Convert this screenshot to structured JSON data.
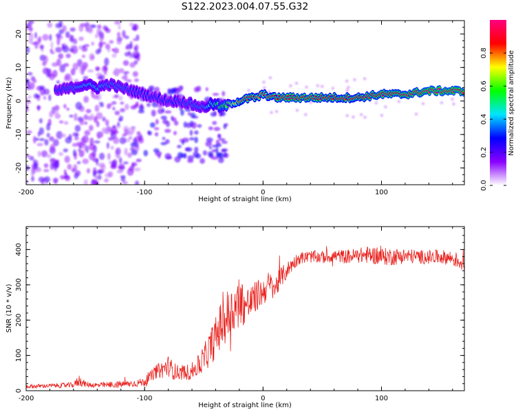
{
  "title": "S122.2023.004.07.55.G32",
  "chart_data": [
    {
      "type": "heatmap",
      "xlabel": "Height of straight line (km)",
      "ylabel": "Frequency (Hz)",
      "xlim": [
        -200,
        170
      ],
      "ylim": [
        -25,
        24
      ],
      "x_ticks": [
        -200,
        -100,
        0,
        100
      ],
      "x_tick_labels": [
        "-200",
        "-100",
        "0",
        "100"
      ],
      "y_ticks": [
        -20,
        -10,
        0,
        10,
        20
      ],
      "y_tick_labels": [
        "-20",
        "-10",
        "0",
        "10",
        "20"
      ],
      "colorbar": {
        "label": "Normalized spectral amplitude",
        "range": [
          0,
          1
        ],
        "ticks": [
          0.0,
          0.2,
          0.4,
          0.6,
          0.8
        ],
        "tick_labels": [
          "0.0",
          "0.2",
          "0.4",
          "0.6",
          "0.8"
        ],
        "colors": [
          "#ffffff",
          "#8a00ff",
          "#0000ff",
          "#00e5ff",
          "#00ff00",
          "#ffff00",
          "#ff0000",
          "#ff0080"
        ]
      },
      "ridge": {
        "x": [
          -175,
          -160,
          -150,
          -140,
          -130,
          -120,
          -110,
          -100,
          -90,
          -80,
          -70,
          -60,
          -50,
          -45,
          -40,
          -35,
          -30,
          -20,
          -10,
          -5,
          0,
          10,
          20,
          40,
          60,
          80,
          100,
          120,
          140,
          170
        ],
        "freq": [
          3,
          4,
          5,
          4,
          5,
          4,
          3,
          2,
          1,
          0,
          0,
          -1,
          -2,
          -1,
          -1,
          -2,
          -1,
          0,
          1,
          1,
          2,
          1,
          1,
          1,
          1,
          1,
          2,
          2,
          3,
          3
        ],
        "amplitude": [
          0.3,
          0.35,
          0.4,
          0.4,
          0.35,
          0.35,
          0.3,
          0.3,
          0.3,
          0.3,
          0.3,
          0.35,
          0.35,
          0.45,
          0.5,
          0.55,
          0.6,
          0.8,
          0.85,
          0.8,
          0.8,
          0.85,
          0.9,
          0.9,
          0.85,
          0.85,
          0.9,
          0.9,
          0.95,
          0.95
        ]
      },
      "noise_region": {
        "x_from": -200,
        "x_to": -105,
        "amplitude": 0.1
      }
    },
    {
      "type": "line",
      "xlabel": "Height of straight line (km)",
      "ylabel": "SNR (10 * v/v)",
      "xlim": [
        -200,
        170
      ],
      "ylim": [
        0,
        465
      ],
      "x_ticks": [
        -200,
        -100,
        0,
        100
      ],
      "x_tick_labels": [
        "-200",
        "-100",
        "0",
        "100"
      ],
      "y_ticks": [
        0,
        100,
        200,
        300,
        400
      ],
      "y_tick_labels": [
        "0",
        "100",
        "200",
        "300",
        "400"
      ],
      "series": [
        {
          "name": "SNR",
          "color": "#e8211d",
          "x": [
            -200,
            -180,
            -160,
            -155,
            -150,
            -140,
            -120,
            -110,
            -100,
            -95,
            -90,
            -85,
            -80,
            -75,
            -70,
            -65,
            -60,
            -55,
            -50,
            -45,
            -40,
            -35,
            -30,
            -25,
            -20,
            -15,
            -10,
            -5,
            0,
            5,
            10,
            15,
            20,
            25,
            30,
            40,
            50,
            60,
            70,
            80,
            90,
            100,
            110,
            120,
            130,
            140,
            150,
            160,
            170
          ],
          "y": [
            12,
            14,
            16,
            30,
            18,
            15,
            18,
            20,
            25,
            40,
            55,
            60,
            70,
            55,
            50,
            52,
            55,
            70,
            90,
            120,
            150,
            190,
            210,
            230,
            260,
            240,
            250,
            270,
            280,
            300,
            290,
            320,
            340,
            360,
            375,
            380,
            378,
            382,
            380,
            383,
            385,
            380,
            380,
            382,
            380,
            378,
            380,
            375,
            360
          ],
          "noise_amplitude": [
            6,
            6,
            8,
            18,
            8,
            8,
            10,
            10,
            12,
            16,
            20,
            25,
            30,
            25,
            20,
            22,
            25,
            30,
            40,
            50,
            60,
            70,
            80,
            70,
            70,
            60,
            50,
            45,
            40,
            40,
            35,
            30,
            25,
            20,
            18,
            18,
            18,
            18,
            20,
            22,
            25,
            25,
            25,
            22,
            20,
            20,
            20,
            22,
            25
          ]
        }
      ]
    }
  ]
}
